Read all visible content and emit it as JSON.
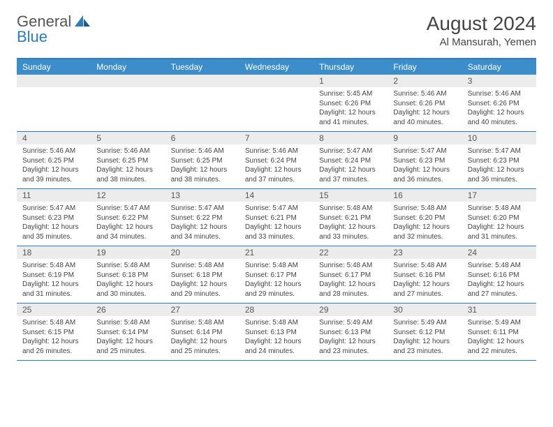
{
  "brand": {
    "part1": "General",
    "part2": "Blue"
  },
  "title": "August 2024",
  "location": "Al Mansurah, Yemen",
  "daynames": [
    "Sunday",
    "Monday",
    "Tuesday",
    "Wednesday",
    "Thursday",
    "Friday",
    "Saturday"
  ],
  "colors": {
    "header_bg": "#3c8ecb",
    "border": "#2b7bbd",
    "daynum_bg": "#ececec",
    "text": "#444444"
  },
  "weeks": [
    [
      {
        "n": "",
        "sr": "",
        "ss": "",
        "dl": ""
      },
      {
        "n": "",
        "sr": "",
        "ss": "",
        "dl": ""
      },
      {
        "n": "",
        "sr": "",
        "ss": "",
        "dl": ""
      },
      {
        "n": "",
        "sr": "",
        "ss": "",
        "dl": ""
      },
      {
        "n": "1",
        "sr": "5:45 AM",
        "ss": "6:26 PM",
        "dl": "12 hours and 41 minutes."
      },
      {
        "n": "2",
        "sr": "5:46 AM",
        "ss": "6:26 PM",
        "dl": "12 hours and 40 minutes."
      },
      {
        "n": "3",
        "sr": "5:46 AM",
        "ss": "6:26 PM",
        "dl": "12 hours and 40 minutes."
      }
    ],
    [
      {
        "n": "4",
        "sr": "5:46 AM",
        "ss": "6:25 PM",
        "dl": "12 hours and 39 minutes."
      },
      {
        "n": "5",
        "sr": "5:46 AM",
        "ss": "6:25 PM",
        "dl": "12 hours and 38 minutes."
      },
      {
        "n": "6",
        "sr": "5:46 AM",
        "ss": "6:25 PM",
        "dl": "12 hours and 38 minutes."
      },
      {
        "n": "7",
        "sr": "5:46 AM",
        "ss": "6:24 PM",
        "dl": "12 hours and 37 minutes."
      },
      {
        "n": "8",
        "sr": "5:47 AM",
        "ss": "6:24 PM",
        "dl": "12 hours and 37 minutes."
      },
      {
        "n": "9",
        "sr": "5:47 AM",
        "ss": "6:23 PM",
        "dl": "12 hours and 36 minutes."
      },
      {
        "n": "10",
        "sr": "5:47 AM",
        "ss": "6:23 PM",
        "dl": "12 hours and 36 minutes."
      }
    ],
    [
      {
        "n": "11",
        "sr": "5:47 AM",
        "ss": "6:23 PM",
        "dl": "12 hours and 35 minutes."
      },
      {
        "n": "12",
        "sr": "5:47 AM",
        "ss": "6:22 PM",
        "dl": "12 hours and 34 minutes."
      },
      {
        "n": "13",
        "sr": "5:47 AM",
        "ss": "6:22 PM",
        "dl": "12 hours and 34 minutes."
      },
      {
        "n": "14",
        "sr": "5:47 AM",
        "ss": "6:21 PM",
        "dl": "12 hours and 33 minutes."
      },
      {
        "n": "15",
        "sr": "5:48 AM",
        "ss": "6:21 PM",
        "dl": "12 hours and 33 minutes."
      },
      {
        "n": "16",
        "sr": "5:48 AM",
        "ss": "6:20 PM",
        "dl": "12 hours and 32 minutes."
      },
      {
        "n": "17",
        "sr": "5:48 AM",
        "ss": "6:20 PM",
        "dl": "12 hours and 31 minutes."
      }
    ],
    [
      {
        "n": "18",
        "sr": "5:48 AM",
        "ss": "6:19 PM",
        "dl": "12 hours and 31 minutes."
      },
      {
        "n": "19",
        "sr": "5:48 AM",
        "ss": "6:18 PM",
        "dl": "12 hours and 30 minutes."
      },
      {
        "n": "20",
        "sr": "5:48 AM",
        "ss": "6:18 PM",
        "dl": "12 hours and 29 minutes."
      },
      {
        "n": "21",
        "sr": "5:48 AM",
        "ss": "6:17 PM",
        "dl": "12 hours and 29 minutes."
      },
      {
        "n": "22",
        "sr": "5:48 AM",
        "ss": "6:17 PM",
        "dl": "12 hours and 28 minutes."
      },
      {
        "n": "23",
        "sr": "5:48 AM",
        "ss": "6:16 PM",
        "dl": "12 hours and 27 minutes."
      },
      {
        "n": "24",
        "sr": "5:48 AM",
        "ss": "6:16 PM",
        "dl": "12 hours and 27 minutes."
      }
    ],
    [
      {
        "n": "25",
        "sr": "5:48 AM",
        "ss": "6:15 PM",
        "dl": "12 hours and 26 minutes."
      },
      {
        "n": "26",
        "sr": "5:48 AM",
        "ss": "6:14 PM",
        "dl": "12 hours and 25 minutes."
      },
      {
        "n": "27",
        "sr": "5:48 AM",
        "ss": "6:14 PM",
        "dl": "12 hours and 25 minutes."
      },
      {
        "n": "28",
        "sr": "5:48 AM",
        "ss": "6:13 PM",
        "dl": "12 hours and 24 minutes."
      },
      {
        "n": "29",
        "sr": "5:49 AM",
        "ss": "6:13 PM",
        "dl": "12 hours and 23 minutes."
      },
      {
        "n": "30",
        "sr": "5:49 AM",
        "ss": "6:12 PM",
        "dl": "12 hours and 23 minutes."
      },
      {
        "n": "31",
        "sr": "5:49 AM",
        "ss": "6:11 PM",
        "dl": "12 hours and 22 minutes."
      }
    ]
  ],
  "labels": {
    "sunrise": "Sunrise:",
    "sunset": "Sunset:",
    "daylight": "Daylight:"
  }
}
